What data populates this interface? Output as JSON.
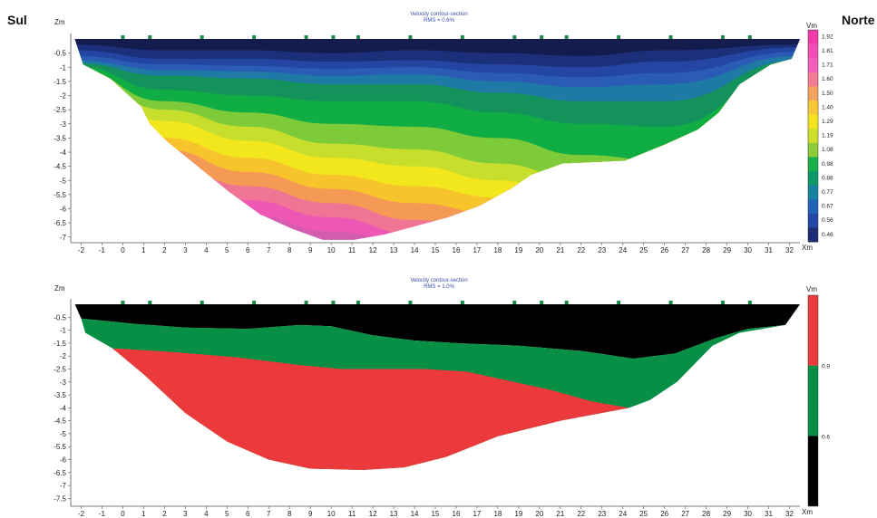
{
  "labels": {
    "left": "Sul",
    "right": "Norte"
  },
  "chart_data": [
    {
      "type": "heatmap",
      "title": "Velocity contour-section",
      "subtitle": "RMS = 0.6%",
      "xlabel": "Xm",
      "ylabel": "Zm",
      "colorbar_label": "Vm",
      "xlim": [
        -2.5,
        32.5
      ],
      "ylim": [
        -7.2,
        0
      ],
      "x_ticks": [
        -2,
        -1,
        0,
        1,
        2,
        3,
        4,
        5,
        6,
        7,
        8,
        9,
        10,
        11,
        12,
        13,
        14,
        15,
        16,
        17,
        18,
        19,
        20,
        21,
        22,
        23,
        24,
        25,
        26,
        27,
        28,
        29,
        30,
        31,
        32
      ],
      "y_ticks": [
        "-0.5",
        "-1",
        "-1.5",
        "-2",
        "-2.5",
        "-3",
        "-3.5",
        "-4",
        "-4.5",
        "-5",
        "-5.5",
        "-6",
        "-6.5",
        "-7"
      ],
      "y_tick_values": [
        -0.5,
        -1,
        -1.5,
        -2,
        -2.5,
        -3,
        -3.5,
        -4,
        -4.5,
        -5,
        -5.5,
        -6,
        -6.5,
        -7
      ],
      "geophones_x": [
        0,
        1.3,
        3.8,
        6.3,
        8.8,
        10.1,
        11.3,
        13.8,
        16.3,
        18.8,
        20.1,
        21.3,
        23.8,
        26.3,
        28.8,
        30.1
      ],
      "surface_z": 0,
      "bottom_boundary": [
        [
          -2.3,
          0
        ],
        [
          -1.9,
          -0.9
        ],
        [
          -0.6,
          -1.4
        ],
        [
          0.9,
          -2.4
        ],
        [
          1.3,
          -3.0
        ],
        [
          2.1,
          -3.6
        ],
        [
          3.6,
          -4.5
        ],
        [
          5.1,
          -5.4
        ],
        [
          6.6,
          -6.2
        ],
        [
          8.1,
          -6.7
        ],
        [
          9.6,
          -7.1
        ],
        [
          11.1,
          -7.1
        ],
        [
          12.6,
          -6.9
        ],
        [
          14.1,
          -6.6
        ],
        [
          15.6,
          -6.3
        ],
        [
          17.1,
          -5.9
        ],
        [
          18.6,
          -5.3
        ],
        [
          19.6,
          -4.8
        ],
        [
          21.1,
          -4.4
        ],
        [
          24.1,
          -4.3
        ],
        [
          26.1,
          -3.7
        ],
        [
          27.6,
          -3.2
        ],
        [
          28.6,
          -2.6
        ],
        [
          29.6,
          -1.6
        ],
        [
          31.1,
          -0.9
        ],
        [
          32.1,
          -0.7
        ],
        [
          32.5,
          0
        ]
      ],
      "colorbar": {
        "values": [
          "1.92",
          "1.81",
          "1.71",
          "1.60",
          "1.50",
          "1.40",
          "1.29",
          "1.19",
          "1.08",
          "0.98",
          "0.88",
          "0.77",
          "0.67",
          "0.56",
          "0.46"
        ],
        "colors": [
          "#f23aa8",
          "#f24fb6",
          "#f260bc",
          "#f37c92",
          "#f6a35d",
          "#f9c838",
          "#f4e41e",
          "#cfe02a",
          "#8ecd3a",
          "#18b04a",
          "#0c9a6a",
          "#1583a0",
          "#1f63b6",
          "#2448a8",
          "#1c2c74"
        ]
      },
      "bands": [
        {
          "value": 0.4,
          "color": "#141c4e"
        },
        {
          "value": 0.56,
          "color": "#1b2f7a"
        },
        {
          "value": 0.67,
          "color": "#2446a2"
        },
        {
          "value": 0.77,
          "color": "#2a5cb6"
        },
        {
          "value": 0.88,
          "color": "#1e79a4"
        },
        {
          "value": 0.98,
          "color": "#14925c"
        },
        {
          "value": 1.08,
          "color": "#10ad45"
        },
        {
          "value": 1.19,
          "color": "#7ecb3a"
        },
        {
          "value": 1.29,
          "color": "#c7df2c"
        },
        {
          "value": 1.4,
          "color": "#f2e61c"
        },
        {
          "value": 1.5,
          "color": "#f7c42c"
        },
        {
          "value": 1.6,
          "color": "#f59a55"
        },
        {
          "value": 1.71,
          "color": "#f07494"
        },
        {
          "value": 1.81,
          "color": "#ee58b4"
        },
        {
          "value": 1.92,
          "color": "#d45cb0"
        }
      ],
      "band_profiles": [
        {
          "x": -2.3,
          "z": [
            -0.2,
            -0.4,
            -0.6,
            -0.75,
            -0.85,
            -0.95,
            -1.05,
            -1.2,
            -1.4,
            -1.6,
            -1.8,
            -2.0,
            -2.2,
            -2.4
          ]
        },
        {
          "x": 2.0,
          "z": [
            -0.4,
            -0.7,
            -0.9,
            -1.1,
            -1.3,
            -1.8,
            -2.2,
            -2.5,
            -2.9,
            -3.5,
            -3.9,
            -4.4,
            -5.0,
            -5.6
          ]
        },
        {
          "x": 6.0,
          "z": [
            -0.4,
            -0.7,
            -0.95,
            -1.15,
            -1.4,
            -2.0,
            -2.6,
            -3.1,
            -3.6,
            -4.2,
            -4.7,
            -5.2,
            -5.7,
            -6.2
          ]
        },
        {
          "x": 10.0,
          "z": [
            -0.5,
            -0.8,
            -1.05,
            -1.3,
            -1.6,
            -2.2,
            -3.0,
            -3.7,
            -4.2,
            -4.8,
            -5.3,
            -5.8,
            -6.3,
            -6.8
          ]
        },
        {
          "x": 14.0,
          "z": [
            -0.4,
            -0.75,
            -1.0,
            -1.25,
            -1.6,
            -2.2,
            -3.1,
            -3.9,
            -4.5,
            -5.2,
            -5.8,
            -6.4,
            -6.9,
            -7.2
          ]
        },
        {
          "x": 18.0,
          "z": [
            -0.5,
            -0.9,
            -1.2,
            -1.5,
            -1.9,
            -2.6,
            -3.5,
            -4.4,
            -5.0,
            -5.6,
            -6.2,
            -6.8,
            -7.2,
            -7.3
          ]
        },
        {
          "x": 22.0,
          "z": [
            -0.6,
            -1.0,
            -1.35,
            -1.7,
            -2.2,
            -3.0,
            -4.1,
            -5.0,
            -5.6,
            -6.2,
            -6.8,
            -7.2,
            -7.3,
            -7.3
          ]
        },
        {
          "x": 26.0,
          "z": [
            -0.4,
            -0.8,
            -1.2,
            -1.6,
            -2.2,
            -3.1,
            -4.3,
            -5.2,
            -5.8,
            -6.4,
            -7.0,
            -7.3,
            -7.3,
            -7.3
          ]
        },
        {
          "x": 32.5,
          "z": [
            -0.2,
            -0.3,
            -0.45,
            -0.6,
            -0.75,
            -0.9,
            -1.1,
            -1.4,
            -1.7,
            -2.0,
            -2.3,
            -2.6,
            -2.9,
            -3.2
          ]
        }
      ]
    },
    {
      "type": "heatmap",
      "title": "Velocity contour-section",
      "subtitle": "RMS = 1.0%",
      "xlabel": "Xm",
      "ylabel": "Zm",
      "colorbar_label": "Vm",
      "xlim": [
        -2.5,
        32.5
      ],
      "ylim": [
        -7.8,
        0
      ],
      "x_ticks": [
        -2,
        -1,
        0,
        1,
        2,
        3,
        4,
        5,
        6,
        7,
        8,
        9,
        10,
        11,
        12,
        13,
        14,
        15,
        16,
        17,
        18,
        19,
        20,
        21,
        22,
        23,
        24,
        25,
        26,
        27,
        28,
        29,
        30,
        31,
        32
      ],
      "y_ticks": [
        "-0.5",
        "-1",
        "-1.5",
        "-2",
        "-2.5",
        "-3",
        "-3.5",
        "-4",
        "-4.5",
        "-5",
        "-5.5",
        "-6",
        "-6.5",
        "-7",
        "-7.5"
      ],
      "y_tick_values": [
        -0.5,
        -1,
        -1.5,
        -2,
        -2.5,
        -3,
        -3.5,
        -4,
        -4.5,
        -5,
        -5.5,
        -6,
        -6.5,
        -7,
        -7.5
      ],
      "geophones_x": [
        0,
        1.3,
        3.8,
        6.3,
        8.8,
        10.1,
        11.3,
        13.8,
        16.3,
        18.8,
        20.1,
        21.3,
        23.8,
        26.3,
        28.8,
        30.1
      ],
      "colorbar": {
        "labels": [
          "0.9",
          "0.6"
        ],
        "label_values": [
          0.9,
          0.6
        ],
        "segments": [
          {
            "from": 0.9,
            "to": 1.2,
            "color": "#ec3a3c"
          },
          {
            "from": 0.6,
            "to": 0.9,
            "color": "#079045"
          },
          {
            "from": 0.3,
            "to": 0.6,
            "color": "#000000"
          }
        ]
      },
      "layers": [
        {
          "name": "black",
          "color": "#000000",
          "polygon": [
            [
              -2.3,
              0
            ],
            [
              32.5,
              0
            ],
            [
              31.8,
              -0.8
            ],
            [
              30.0,
              -0.95
            ],
            [
              28.5,
              -1.3
            ],
            [
              26.5,
              -1.9
            ],
            [
              24.5,
              -2.1
            ],
            [
              22.0,
              -1.8
            ],
            [
              19.0,
              -1.6
            ],
            [
              16.0,
              -1.5
            ],
            [
              14.0,
              -1.4
            ],
            [
              12.0,
              -1.2
            ],
            [
              10.0,
              -0.85
            ],
            [
              8.5,
              -0.8
            ],
            [
              6.0,
              -0.95
            ],
            [
              3.0,
              -0.9
            ],
            [
              0.5,
              -0.75
            ],
            [
              -2.0,
              -0.55
            ]
          ]
        },
        {
          "name": "green",
          "color": "#079045",
          "polygon": [
            [
              -2.0,
              -0.55
            ],
            [
              0.5,
              -0.75
            ],
            [
              3.0,
              -0.9
            ],
            [
              6.0,
              -0.95
            ],
            [
              8.5,
              -0.8
            ],
            [
              10.0,
              -0.85
            ],
            [
              12.0,
              -1.2
            ],
            [
              14.0,
              -1.4
            ],
            [
              16.0,
              -1.5
            ],
            [
              19.0,
              -1.6
            ],
            [
              22.0,
              -1.8
            ],
            [
              24.5,
              -2.1
            ],
            [
              26.5,
              -1.9
            ],
            [
              28.5,
              -1.3
            ],
            [
              30.0,
              -0.95
            ],
            [
              31.8,
              -0.8
            ],
            [
              29.6,
              -1.1
            ],
            [
              28.3,
              -1.6
            ],
            [
              26.6,
              -3.0
            ],
            [
              25.3,
              -3.7
            ],
            [
              24.3,
              -4.0
            ],
            [
              21.0,
              -4.5
            ],
            [
              18.0,
              -5.1
            ],
            [
              15.5,
              -5.9
            ],
            [
              13.5,
              -6.3
            ],
            [
              11.5,
              -6.4
            ],
            [
              9.0,
              -6.35
            ],
            [
              7.0,
              -6.0
            ],
            [
              5.0,
              -5.3
            ],
            [
              3.0,
              -4.2
            ],
            [
              1.0,
              -2.7
            ],
            [
              -0.5,
              -1.7
            ],
            [
              -1.8,
              -1.1
            ]
          ]
        },
        {
          "name": "red",
          "color": "#ec3a3c",
          "polygon": [
            [
              -0.5,
              -1.7
            ],
            [
              2.5,
              -1.85
            ],
            [
              5.5,
              -2.05
            ],
            [
              8.5,
              -2.35
            ],
            [
              10.5,
              -2.5
            ],
            [
              12.5,
              -2.5
            ],
            [
              14.5,
              -2.5
            ],
            [
              16.5,
              -2.6
            ],
            [
              18.5,
              -2.95
            ],
            [
              20.5,
              -3.3
            ],
            [
              22.5,
              -3.75
            ],
            [
              24.3,
              -4.0
            ],
            [
              21.0,
              -4.5
            ],
            [
              18.0,
              -5.1
            ],
            [
              15.5,
              -5.9
            ],
            [
              13.5,
              -6.3
            ],
            [
              11.5,
              -6.4
            ],
            [
              9.0,
              -6.35
            ],
            [
              7.0,
              -6.0
            ],
            [
              5.0,
              -5.3
            ],
            [
              3.0,
              -4.2
            ],
            [
              1.0,
              -2.7
            ]
          ]
        }
      ]
    }
  ]
}
